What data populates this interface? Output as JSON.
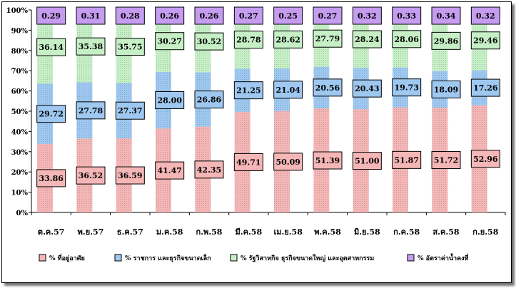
{
  "chart_data": {
    "type": "bar",
    "stacked": true,
    "percent_stacked": true,
    "categories": [
      "ต.ค.57",
      "พ.ย.57",
      "ธ.ค.57",
      "ม.ค.58",
      "ก.พ.58",
      "มี.ค.58",
      "เม.ย.58",
      "พ.ค.58",
      "มิ.ย.58",
      "ก.ค.58",
      "ส.ค.58",
      "ก.ย.58"
    ],
    "series": [
      {
        "name": "% ที่อยู่อาศัย",
        "color": "#f4b6b6",
        "values": [
          33.86,
          36.52,
          36.59,
          41.47,
          42.35,
          49.71,
          50.09,
          51.39,
          51.0,
          51.87,
          51.72,
          52.96
        ]
      },
      {
        "name": "% ราชการ และธุรกิจขนาดเล็ก",
        "color": "#9ec8f0",
        "values": [
          29.72,
          27.78,
          27.37,
          28.0,
          26.86,
          21.25,
          21.04,
          20.56,
          20.43,
          19.73,
          18.09,
          17.26
        ]
      },
      {
        "name": "% รัฐวิสาหกิจ ธุรกิจขนาดใหญ่ และอุตสาหกรรม",
        "color": "#c6efc6",
        "values": [
          36.14,
          35.38,
          35.75,
          30.27,
          30.52,
          28.78,
          28.62,
          27.79,
          28.24,
          28.06,
          29.86,
          29.46
        ]
      },
      {
        "name": "% อัตราค่าน้ำคงที่",
        "color": "#c59cf0",
        "values": [
          0.29,
          0.31,
          0.28,
          0.26,
          0.26,
          0.27,
          0.25,
          0.27,
          0.32,
          0.33,
          0.34,
          0.32
        ]
      }
    ],
    "y_ticks": [
      "0%",
      "10%",
      "20%",
      "30%",
      "40%",
      "50%",
      "60%",
      "70%",
      "80%",
      "90%",
      "100%"
    ],
    "ylim": [
      0,
      100
    ],
    "grid": false,
    "legend_position": "bottom"
  }
}
